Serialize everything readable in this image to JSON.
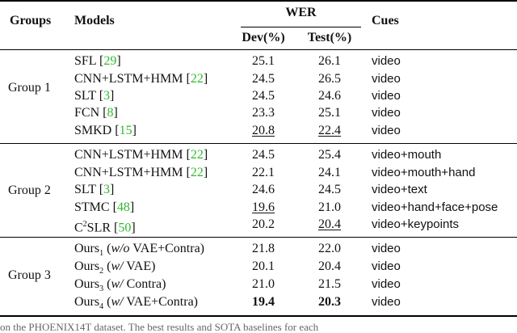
{
  "headers": {
    "groups": "Groups",
    "models": "Models",
    "wer": "WER",
    "dev": "Dev(%)",
    "test": "Test(%)",
    "cues": "Cues"
  },
  "groups": [
    {
      "label": "Group 1",
      "rows": [
        {
          "model": "SFL ",
          "cite": "29",
          "dev": "25.1",
          "test": "26.1",
          "cues": "video"
        },
        {
          "model": "CNN+LSTM+HMM ",
          "cite": "22",
          "dev": "24.5",
          "test": "26.5",
          "cues": "video"
        },
        {
          "model": "SLT ",
          "cite": "3",
          "dev": "24.5",
          "test": "24.6",
          "cues": "video"
        },
        {
          "model": "FCN ",
          "cite": "8",
          "dev": "23.3",
          "test": "25.1",
          "cues": "video"
        },
        {
          "model": "SMKD ",
          "cite": "15",
          "dev": "20.8",
          "test": "22.4",
          "cues": "video"
        }
      ]
    },
    {
      "label": "Group 2",
      "rows": [
        {
          "model": "CNN+LSTM+HMM ",
          "cite": "22",
          "dev": "24.5",
          "test": "25.4",
          "cues": "video+mouth"
        },
        {
          "model": "CNN+LSTM+HMM ",
          "cite": "22",
          "dev": "22.1",
          "test": "24.1",
          "cues": "video+mouth+hand"
        },
        {
          "model": "SLT ",
          "cite": "3",
          "dev": "24.6",
          "test": "24.5",
          "cues": "video+text"
        },
        {
          "model": "STMC ",
          "cite": "48",
          "dev": "19.6",
          "test": "21.0",
          "cues": "video+hand+face+pose"
        },
        {
          "model_pre": "C",
          "model_sup": "2",
          "model": "SLR ",
          "cite": "50",
          "dev": "20.2",
          "test": "20.4",
          "cues": "video+keypoints"
        }
      ]
    },
    {
      "label": "Group 3",
      "rows": [
        {
          "model": "Ours",
          "sub": "1",
          "variant_pre": " (",
          "variant_it": "w/o",
          "variant_post": " VAE+Contra)",
          "dev": "21.8",
          "test": "22.0",
          "cues": "video"
        },
        {
          "model": "Ours",
          "sub": "2",
          "variant_pre": " (",
          "variant_it": "w/",
          "variant_post": " VAE)",
          "dev": "20.1",
          "test": "20.4",
          "cues": "video"
        },
        {
          "model": "Ours",
          "sub": "3",
          "variant_pre": " (",
          "variant_it": "w/",
          "variant_post": " Contra)",
          "dev": "21.0",
          "test": "21.5",
          "cues": "video"
        },
        {
          "model": "Ours",
          "sub": "4",
          "variant_pre": " (",
          "variant_it": "w/",
          "variant_post": " VAE+Contra)",
          "dev": "19.4",
          "test": "20.3",
          "cues": "video"
        }
      ]
    }
  ],
  "caption": "on the PHOENIX14T dataset. The best results and SOTA baselines for each"
}
